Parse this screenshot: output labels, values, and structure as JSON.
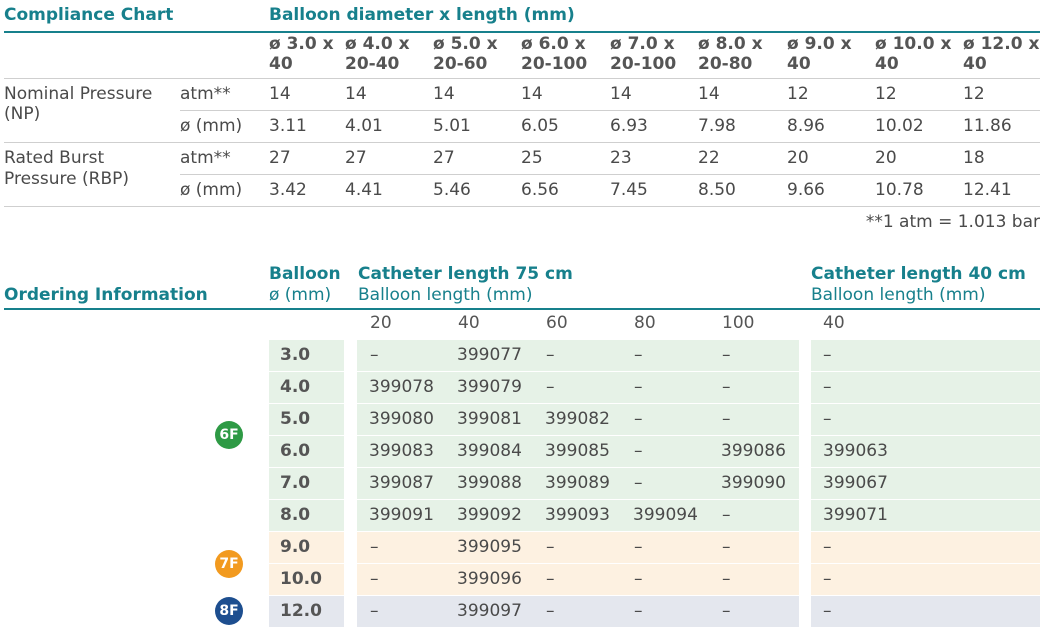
{
  "compliance": {
    "title": "Compliance Chart",
    "group_header": "Balloon diameter x length (mm)",
    "columns": [
      {
        "line1": "ø 3.0 x",
        "line2": "40"
      },
      {
        "line1": "ø 4.0 x",
        "line2": "20-40"
      },
      {
        "line1": "ø 5.0 x",
        "line2": "20-60"
      },
      {
        "line1": "ø 6.0 x",
        "line2": "20-100"
      },
      {
        "line1": "ø 7.0 x",
        "line2": "20-100"
      },
      {
        "line1": "ø 8.0 x",
        "line2": "20-80"
      },
      {
        "line1": "ø 9.0 x",
        "line2": "40"
      },
      {
        "line1": "ø 10.0 x",
        "line2": "40"
      },
      {
        "line1": "ø 12.0 x",
        "line2": "40"
      }
    ],
    "nominal_label_1": "Nominal Pressure",
    "nominal_label_2": "(NP)",
    "burst_label_1": "Rated Burst",
    "burst_label_2": "Pressure (RBP)",
    "unit_atm": "atm**",
    "unit_diam": "ø (mm)",
    "np_atm": [
      "14",
      "14",
      "14",
      "14",
      "14",
      "14",
      "12",
      "12",
      "12"
    ],
    "np_diam": [
      "3.11",
      "4.01",
      "5.01",
      "6.05",
      "6.93",
      "7.98",
      "8.96",
      "10.02",
      "11.86"
    ],
    "rbp_atm": [
      "27",
      "27",
      "27",
      "25",
      "23",
      "22",
      "20",
      "20",
      "18"
    ],
    "rbp_diam": [
      "3.42",
      "4.41",
      "5.46",
      "6.56",
      "7.45",
      "8.50",
      "9.66",
      "10.78",
      "12.41"
    ],
    "footnote": "**1 atm = 1.013 bar"
  },
  "ordering": {
    "title": "Ordering Information",
    "balloon_header_1": "Balloon",
    "balloon_header_2": "ø (mm)",
    "cat75_header": "Catheter length 75 cm",
    "cat75_sub": "Balloon length (mm)",
    "cat40_header": "Catheter length 40 cm",
    "cat40_sub": "Balloon length (mm)",
    "lengths75": [
      "20",
      "40",
      "60",
      "80",
      "100"
    ],
    "lengths40": [
      "40"
    ],
    "rows": [
      {
        "d": "3.0",
        "v": [
          "–",
          "399077",
          "–",
          "–",
          "–"
        ],
        "w": "–"
      },
      {
        "d": "4.0",
        "v": [
          "399078",
          "399079",
          "–",
          "–",
          "–"
        ],
        "w": "–"
      },
      {
        "d": "5.0",
        "v": [
          "399080",
          "399081",
          "399082",
          "–",
          "–"
        ],
        "w": "–"
      },
      {
        "d": "6.0",
        "v": [
          "399083",
          "399084",
          "399085",
          "–",
          "399086"
        ],
        "w": "399063"
      },
      {
        "d": "7.0",
        "v": [
          "399087",
          "399088",
          "399089",
          "–",
          "399090"
        ],
        "w": "399067"
      },
      {
        "d": "8.0",
        "v": [
          "399091",
          "399092",
          "399093",
          "399094",
          "–"
        ],
        "w": "399071"
      },
      {
        "d": "9.0",
        "v": [
          "–",
          "399095",
          "–",
          "–",
          "–"
        ],
        "w": "–"
      },
      {
        "d": "10.0",
        "v": [
          "–",
          "399096",
          "–",
          "–",
          "–"
        ],
        "w": "–"
      },
      {
        "d": "12.0",
        "v": [
          "–",
          "399097",
          "–",
          "–",
          "–"
        ],
        "w": "–"
      }
    ],
    "badges": [
      "6F",
      "7F",
      "8F"
    ],
    "colors": {
      "green": "#e6f2e7",
      "orange": "#fdf1e1",
      "blue": "#e4e7ee",
      "badge6": "#2e9a45",
      "badge7": "#f29a1f",
      "badge8": "#1d4e8f"
    }
  }
}
